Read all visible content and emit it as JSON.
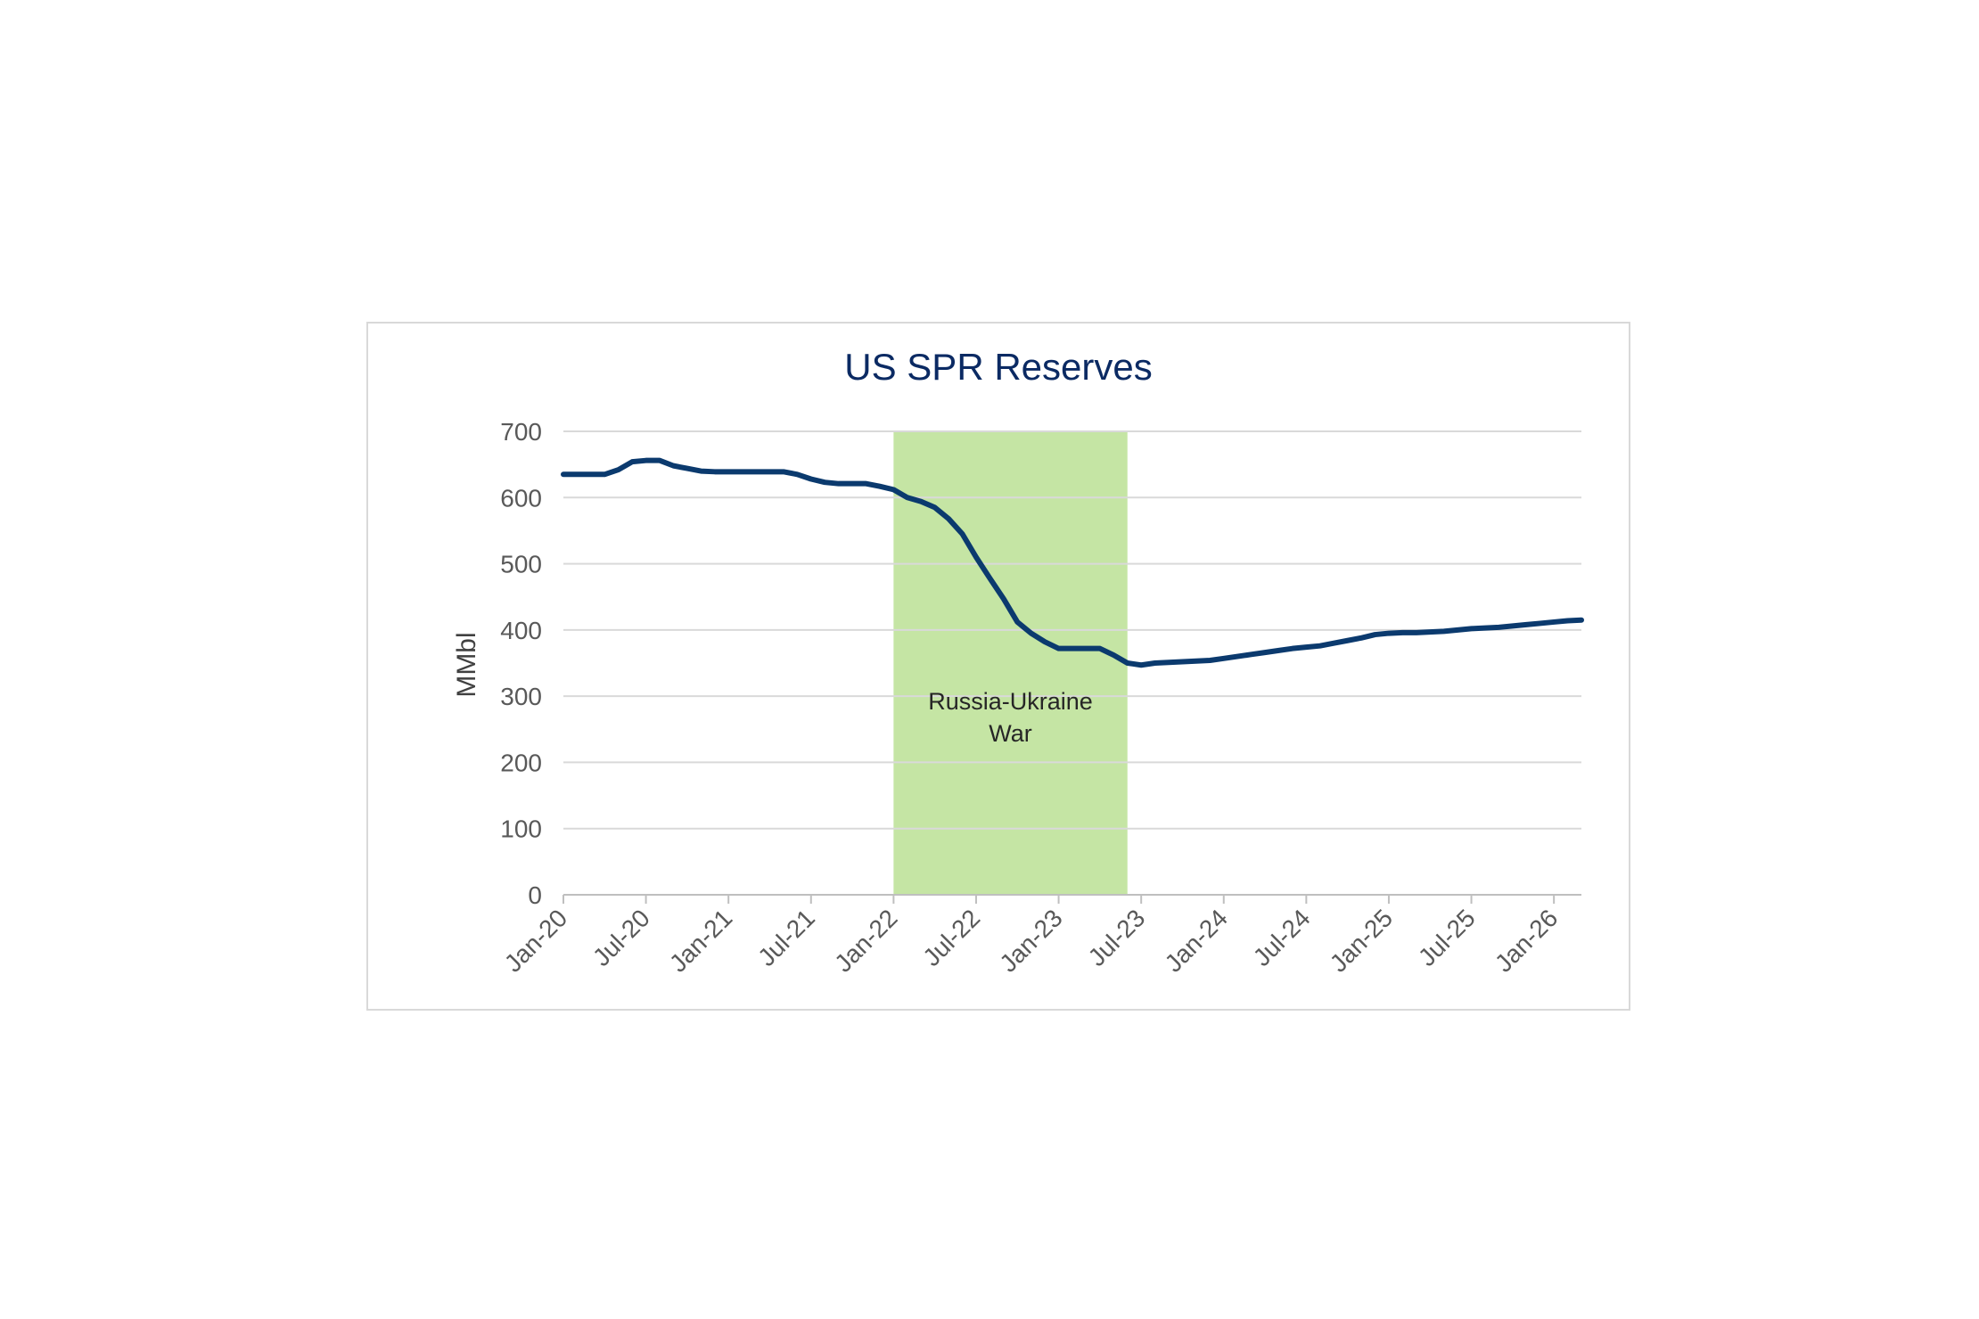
{
  "chart_data": {
    "type": "line",
    "title": "US SPR Reserves",
    "xlabel": "",
    "ylabel": "MMbl",
    "ylim": [
      0,
      700
    ],
    "yticks": [
      "0",
      "100",
      "200",
      "300",
      "400",
      "500",
      "600",
      "700"
    ],
    "xlim": [
      "2020-01",
      "2026-03"
    ],
    "xticks": [
      {
        "label": "Jan-20",
        "date": "2020-01"
      },
      {
        "label": "Jul-20",
        "date": "2020-07"
      },
      {
        "label": "Jan-21",
        "date": "2021-01"
      },
      {
        "label": "Jul-21",
        "date": "2021-07"
      },
      {
        "label": "Jan-22",
        "date": "2022-01"
      },
      {
        "label": "Jul-22",
        "date": "2022-07"
      },
      {
        "label": "Jan-23",
        "date": "2023-01"
      },
      {
        "label": "Jul-23",
        "date": "2023-07"
      },
      {
        "label": "Jan-24",
        "date": "2024-01"
      },
      {
        "label": "Jul-24",
        "date": "2024-07"
      },
      {
        "label": "Jan-25",
        "date": "2025-01"
      },
      {
        "label": "Jul-25",
        "date": "2025-07"
      },
      {
        "label": "Jan-26",
        "date": "2026-01"
      }
    ],
    "grid": true,
    "series": [
      {
        "color": "#0b3a6e",
        "points": [
          [
            "2020-01",
            635
          ],
          [
            "2020-02",
            635
          ],
          [
            "2020-03",
            635
          ],
          [
            "2020-04",
            635
          ],
          [
            "2020-05",
            642
          ],
          [
            "2020-06",
            654
          ],
          [
            "2020-07",
            656
          ],
          [
            "2020-08",
            656
          ],
          [
            "2020-09",
            648
          ],
          [
            "2020-10",
            644
          ],
          [
            "2020-11",
            640
          ],
          [
            "2020-12",
            639
          ],
          [
            "2021-01",
            639
          ],
          [
            "2021-02",
            639
          ],
          [
            "2021-03",
            639
          ],
          [
            "2021-04",
            639
          ],
          [
            "2021-05",
            639
          ],
          [
            "2021-06",
            635
          ],
          [
            "2021-07",
            628
          ],
          [
            "2021-08",
            623
          ],
          [
            "2021-09",
            621
          ],
          [
            "2021-10",
            621
          ],
          [
            "2021-11",
            621
          ],
          [
            "2021-12",
            617
          ],
          [
            "2022-01",
            612
          ],
          [
            "2022-02",
            600
          ],
          [
            "2022-03",
            594
          ],
          [
            "2022-04",
            585
          ],
          [
            "2022-05",
            568
          ],
          [
            "2022-06",
            545
          ],
          [
            "2022-07",
            510
          ],
          [
            "2022-08",
            478
          ],
          [
            "2022-09",
            447
          ],
          [
            "2022-10",
            412
          ],
          [
            "2022-11",
            395
          ],
          [
            "2022-12",
            382
          ],
          [
            "2023-01",
            372
          ],
          [
            "2023-02",
            372
          ],
          [
            "2023-03",
            372
          ],
          [
            "2023-04",
            372
          ],
          [
            "2023-05",
            362
          ],
          [
            "2023-06",
            350
          ],
          [
            "2023-07",
            347
          ],
          [
            "2023-08",
            350
          ],
          [
            "2023-09",
            351
          ],
          [
            "2023-10",
            352
          ],
          [
            "2023-11",
            353
          ],
          [
            "2023-12",
            354
          ],
          [
            "2024-01",
            357
          ],
          [
            "2024-02",
            360
          ],
          [
            "2024-03",
            363
          ],
          [
            "2024-04",
            366
          ],
          [
            "2024-05",
            369
          ],
          [
            "2024-06",
            372
          ],
          [
            "2024-07",
            374
          ],
          [
            "2024-08",
            376
          ],
          [
            "2024-09",
            380
          ],
          [
            "2024-10",
            384
          ],
          [
            "2024-11",
            388
          ],
          [
            "2024-12",
            393
          ],
          [
            "2025-01",
            395
          ],
          [
            "2025-02",
            396
          ],
          [
            "2025-03",
            396
          ],
          [
            "2025-04",
            397
          ],
          [
            "2025-05",
            398
          ],
          [
            "2025-06",
            400
          ],
          [
            "2025-07",
            402
          ],
          [
            "2025-08",
            403
          ],
          [
            "2025-09",
            404
          ],
          [
            "2025-10",
            406
          ],
          [
            "2025-11",
            408
          ],
          [
            "2025-12",
            410
          ],
          [
            "2026-01",
            412
          ],
          [
            "2026-02",
            414
          ],
          [
            "2026-03",
            415
          ]
        ]
      }
    ],
    "shaded_region": {
      "x_start": "2022-01",
      "x_end": "2023-06",
      "color": "#c5e5a4",
      "label_lines": [
        "Russia-Ukraine",
        "War"
      ]
    }
  }
}
